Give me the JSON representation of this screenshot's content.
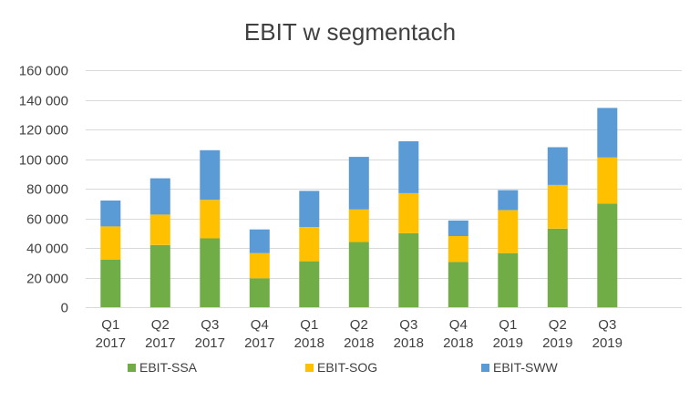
{
  "chart_data": {
    "type": "bar",
    "stacked": true,
    "title": "EBIT w segmentach",
    "xlabel": "",
    "ylabel": "",
    "categories": [
      [
        "Q1",
        "2017"
      ],
      [
        "Q2",
        "2017"
      ],
      [
        "Q3",
        "2017"
      ],
      [
        "Q4",
        "2017"
      ],
      [
        "Q1",
        "2018"
      ],
      [
        "Q2",
        "2018"
      ],
      [
        "Q3",
        "2018"
      ],
      [
        "Q4",
        "2018"
      ],
      [
        "Q1",
        "2019"
      ],
      [
        "Q2",
        "2019"
      ],
      [
        "Q3",
        "2019"
      ]
    ],
    "series": [
      {
        "name": "EBIT-SSA",
        "color": "#70ad47",
        "values": [
          32000,
          42000,
          46500,
          19500,
          31000,
          44000,
          50000,
          30500,
          36500,
          53000,
          70000
        ]
      },
      {
        "name": "EBIT-SOG",
        "color": "#ffc000",
        "values": [
          22500,
          20500,
          26000,
          17000,
          23000,
          22000,
          27000,
          17500,
          29000,
          29500,
          31000
        ]
      },
      {
        "name": "EBIT-SWW",
        "color": "#5b9bd5",
        "values": [
          17500,
          24500,
          33500,
          16000,
          24500,
          35500,
          35000,
          10500,
          13500,
          25500,
          33500
        ]
      }
    ],
    "ylim": [
      0,
      160000
    ],
    "yticks": [
      0,
      20000,
      40000,
      60000,
      80000,
      100000,
      120000,
      140000,
      160000
    ],
    "ytick_labels": [
      "0",
      "20 000",
      "40 000",
      "60 000",
      "80 000",
      "100 000",
      "120 000",
      "140 000",
      "160 000"
    ],
    "grid": true,
    "legend_position": "bottom"
  }
}
